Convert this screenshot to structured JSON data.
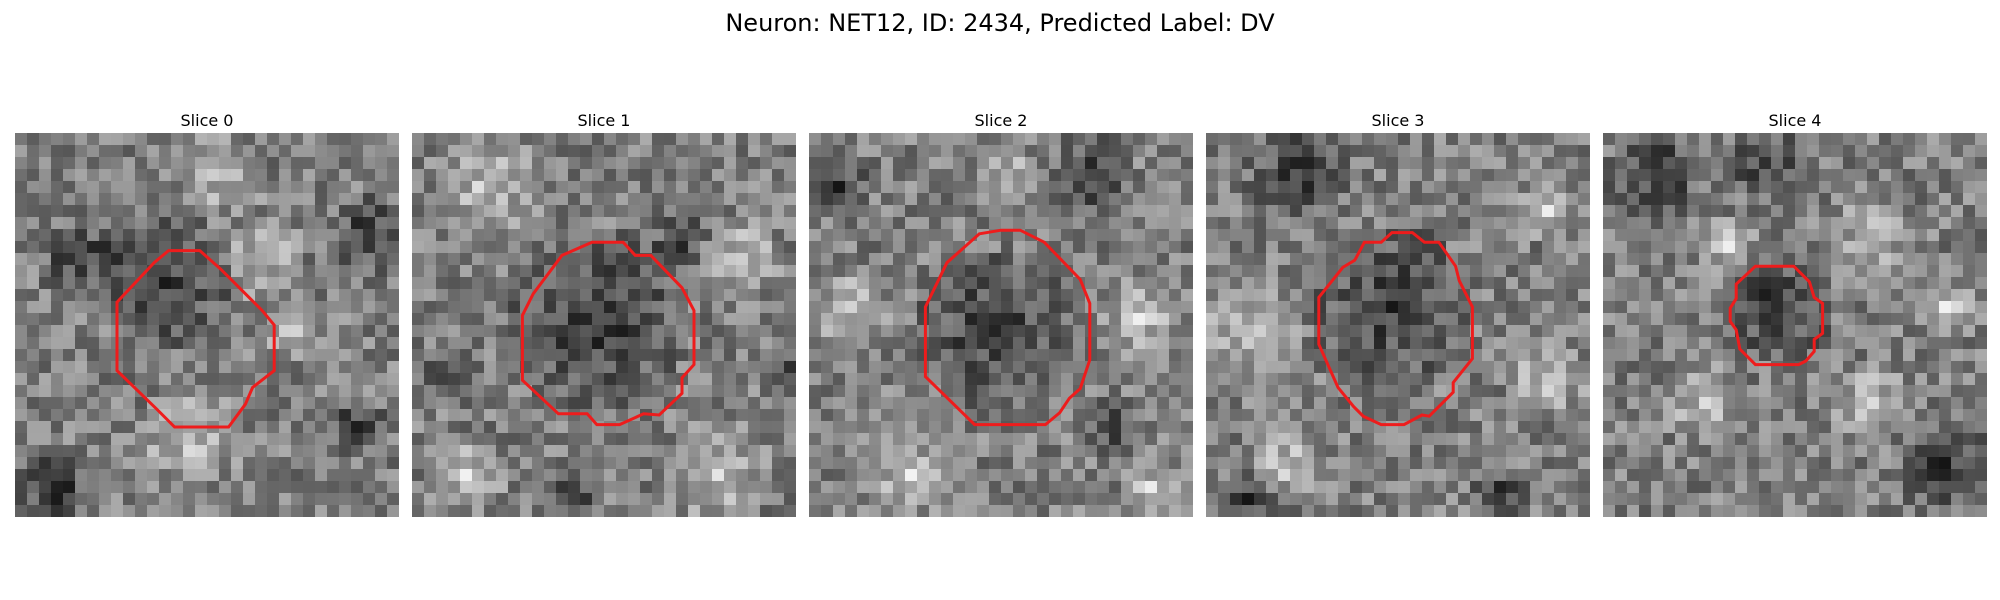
{
  "figure": {
    "title": "Neuron: NET12, ID: 2434, Predicted Label: DV",
    "contour_color": "#ee1c1c"
  },
  "panels": [
    {
      "title": "Slice 0"
    },
    {
      "title": "Slice 1"
    },
    {
      "title": "Slice 2"
    },
    {
      "title": "Slice 3"
    },
    {
      "title": "Slice 4"
    }
  ]
}
